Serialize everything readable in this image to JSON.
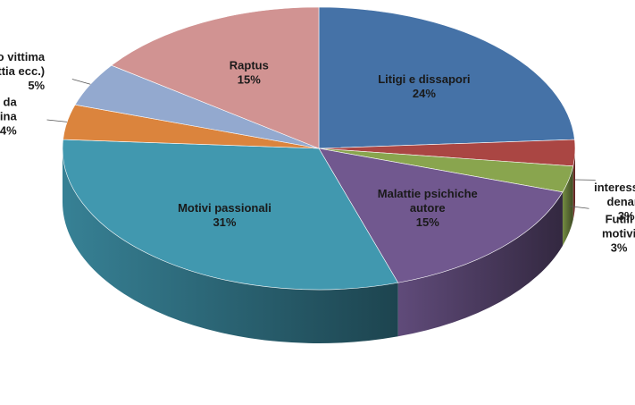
{
  "chart_data": {
    "type": "pie",
    "style": "3d",
    "legend": "none",
    "categories": [
      "Litigi e dissapori",
      "interesse di denaro",
      "Futili motivi",
      "Malattie psichiche autore",
      "Motivi passionali",
      "Difesa da rapina",
      "Disagio vittima (malattia ecc.)",
      "Raptus"
    ],
    "values": [
      24,
      3,
      3,
      15,
      31,
      4,
      5,
      15
    ],
    "value_labels": [
      "24%",
      "3%",
      "3%",
      "15%",
      "31%",
      "4%",
      "5%",
      "15%"
    ],
    "label_lines": [
      [
        "Litigi e dissapori"
      ],
      [
        "interesse di",
        "denaro"
      ],
      [
        "Futili",
        "motivi"
      ],
      [
        "Malattie psichiche",
        "autore"
      ],
      [
        "Motivi passionali"
      ],
      [
        "Difesa da",
        "rapina"
      ],
      [
        "Disagio vittima",
        "(malattia ecc.)"
      ],
      [
        "Raptus"
      ]
    ],
    "colors": [
      "#4572a7",
      "#aa4643",
      "#89a54e",
      "#71588f",
      "#4198af",
      "#db843d",
      "#93a9cf",
      "#d19392"
    ]
  }
}
